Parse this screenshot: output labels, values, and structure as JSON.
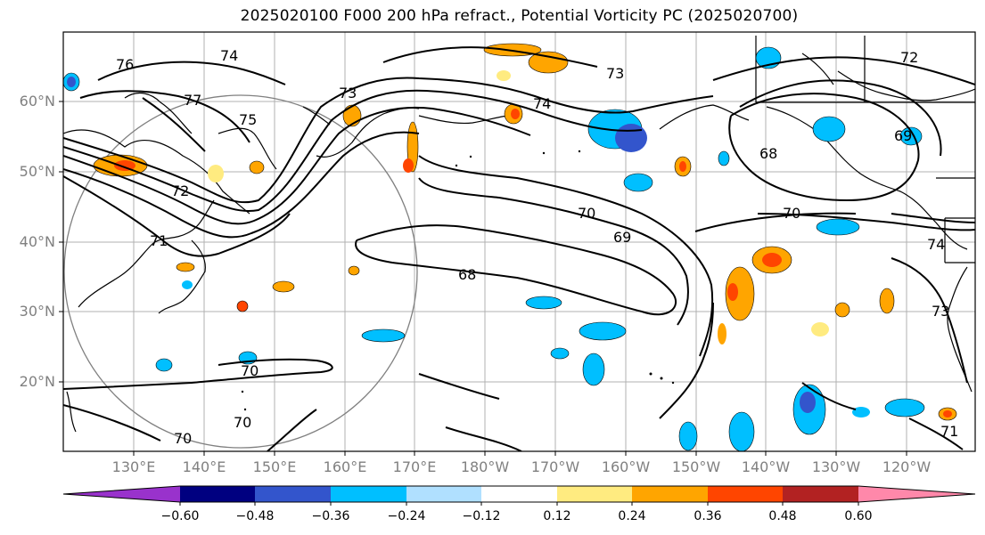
{
  "title": "2025020100 F000 200 hPa refract., Potential Vorticity PC (2025020700)",
  "map": {
    "lat_labels": [
      "60°N",
      "50°N",
      "40°N",
      "30°N",
      "20°N"
    ],
    "lon_labels": [
      "130°E",
      "140°E",
      "150°E",
      "160°E",
      "170°E",
      "180°W",
      "170°W",
      "160°W",
      "150°W",
      "140°W",
      "130°W",
      "120°W"
    ],
    "contour_labels": [
      "76",
      "74",
      "73",
      "77",
      "75",
      "72",
      "71",
      "73",
      "74",
      "72",
      "69",
      "68",
      "70",
      "69",
      "68",
      "70",
      "74",
      "73",
      "71",
      "70",
      "70",
      "70"
    ],
    "colors": {
      "land_coast": "#000000",
      "grid": "#a0a0a0",
      "contour": "#000000",
      "label_gray": "#808080"
    }
  },
  "colorbar": {
    "tick_labels": [
      "−0.60",
      "−0.48",
      "−0.36",
      "−0.24",
      "−0.12",
      "0.12",
      "0.24",
      "0.36",
      "0.48",
      "0.60"
    ],
    "bins": [
      {
        "color": "#9932cc"
      },
      {
        "color": "#000080"
      },
      {
        "color": "#3355cc"
      },
      {
        "color": "#00bfff"
      },
      {
        "color": "#b0e0ff"
      },
      {
        "color": "#ffffff"
      },
      {
        "color": "#ffeb80"
      },
      {
        "color": "#ffa500"
      },
      {
        "color": "#ff4500"
      },
      {
        "color": "#b22222"
      },
      {
        "color": "#ff88aa"
      }
    ]
  }
}
